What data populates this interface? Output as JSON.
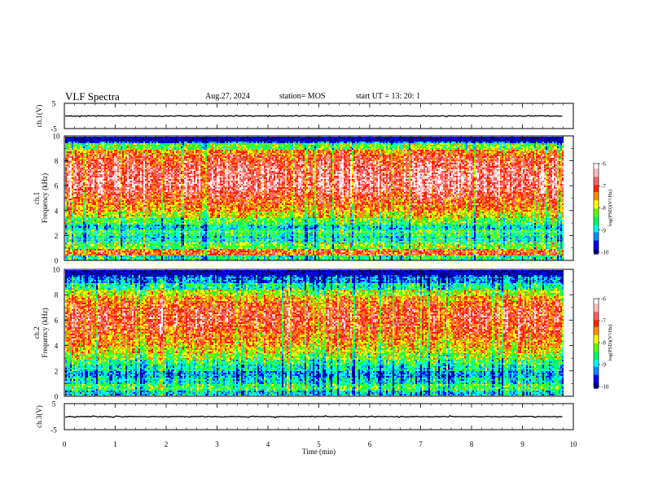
{
  "header": {
    "title": "VLF Spectra",
    "date": "Aug.27, 2024",
    "station": "station= MOS",
    "start": "start  UT  =   13: 20: 1"
  },
  "colors": {
    "colormap": [
      "#000080",
      "#0000ff",
      "#0090ff",
      "#00ffff",
      "#00ff60",
      "#60ff00",
      "#ffff00",
      "#ff9000",
      "#ff2000",
      "#ff6060",
      "#ffc0c0",
      "#ffffff"
    ]
  },
  "chart_data": [
    {
      "type": "line",
      "panel": "ch1-waveform",
      "ylabel": "ch.1(V)",
      "ylim": [
        -5,
        5
      ],
      "yticks": [
        "5",
        "-5"
      ],
      "trace_level": 0,
      "xlim": [
        0,
        10
      ]
    },
    {
      "type": "heatmap",
      "panel": "ch1-spectrogram",
      "ylabel_channel": "ch.1",
      "ylabel": "Frequency (kHz)",
      "ylim": [
        0,
        10
      ],
      "yticks": [
        "0",
        "2",
        "4",
        "6",
        "8",
        "10"
      ],
      "xlim": [
        0,
        10
      ],
      "data_end_min": 9.8,
      "frequency_profile_logPSD": [
        {
          "f": 0.25,
          "v": -8.6
        },
        {
          "f": 0.75,
          "v": -7.2
        },
        {
          "f": 1.25,
          "v": -8.2
        },
        {
          "f": 1.75,
          "v": -8.8
        },
        {
          "f": 2.25,
          "v": -8.5
        },
        {
          "f": 2.75,
          "v": -8.9
        },
        {
          "f": 3.25,
          "v": -8.3
        },
        {
          "f": 3.75,
          "v": -7.8
        },
        {
          "f": 4.25,
          "v": -7.4
        },
        {
          "f": 4.75,
          "v": -7.2
        },
        {
          "f": 5.25,
          "v": -6.9
        },
        {
          "f": 5.75,
          "v": -6.7
        },
        {
          "f": 6.25,
          "v": -6.6
        },
        {
          "f": 6.75,
          "v": -6.6
        },
        {
          "f": 7.25,
          "v": -6.7
        },
        {
          "f": 7.75,
          "v": -6.8
        },
        {
          "f": 8.25,
          "v": -7.0
        },
        {
          "f": 8.75,
          "v": -7.4
        },
        {
          "f": 9.25,
          "v": -8.2
        },
        {
          "f": 9.75,
          "v": -9.4
        }
      ],
      "colorbar": {
        "label": "log(PSD)(V²/Hz)",
        "range": [
          -10,
          -6
        ],
        "ticks": [
          "-6",
          "-7",
          "-8",
          "-9",
          "-10"
        ]
      }
    },
    {
      "type": "heatmap",
      "panel": "ch2-spectrogram",
      "ylabel_channel": "ch.2",
      "ylabel": "Frequency (kHz)",
      "ylim": [
        0,
        10
      ],
      "yticks": [
        "0",
        "2",
        "4",
        "6",
        "8",
        "10"
      ],
      "xlim": [
        0,
        10
      ],
      "data_end_min": 9.8,
      "frequency_profile_logPSD": [
        {
          "f": 0.25,
          "v": -9.0
        },
        {
          "f": 0.75,
          "v": -8.4
        },
        {
          "f": 1.25,
          "v": -8.9
        },
        {
          "f": 1.75,
          "v": -9.2
        },
        {
          "f": 2.25,
          "v": -8.8
        },
        {
          "f": 2.75,
          "v": -8.5
        },
        {
          "f": 3.25,
          "v": -8.1
        },
        {
          "f": 3.75,
          "v": -7.8
        },
        {
          "f": 4.25,
          "v": -7.5
        },
        {
          "f": 4.75,
          "v": -7.3
        },
        {
          "f": 5.25,
          "v": -7.1
        },
        {
          "f": 5.75,
          "v": -7.0
        },
        {
          "f": 6.25,
          "v": -6.9
        },
        {
          "f": 6.75,
          "v": -7.0
        },
        {
          "f": 7.25,
          "v": -7.2
        },
        {
          "f": 7.75,
          "v": -7.5
        },
        {
          "f": 8.25,
          "v": -8.0
        },
        {
          "f": 8.75,
          "v": -8.7
        },
        {
          "f": 9.25,
          "v": -9.3
        },
        {
          "f": 9.75,
          "v": -9.7
        }
      ],
      "colorbar": {
        "label": "log(PSD)(V²/Hz)",
        "range": [
          -10,
          -6
        ],
        "ticks": [
          "-6",
          "-7",
          "-8",
          "-9",
          "-10"
        ]
      }
    },
    {
      "type": "line",
      "panel": "ch3-waveform",
      "ylabel": "ch.3(V)",
      "ylim": [
        -5,
        5
      ],
      "yticks": [
        "5",
        "-5"
      ],
      "trace_level": 0,
      "xlim": [
        0,
        10
      ]
    }
  ],
  "x_axis": {
    "label": "Time (min)",
    "ticks": [
      "0",
      "1",
      "2",
      "3",
      "4",
      "5",
      "6",
      "7",
      "8",
      "9",
      "10"
    ]
  }
}
